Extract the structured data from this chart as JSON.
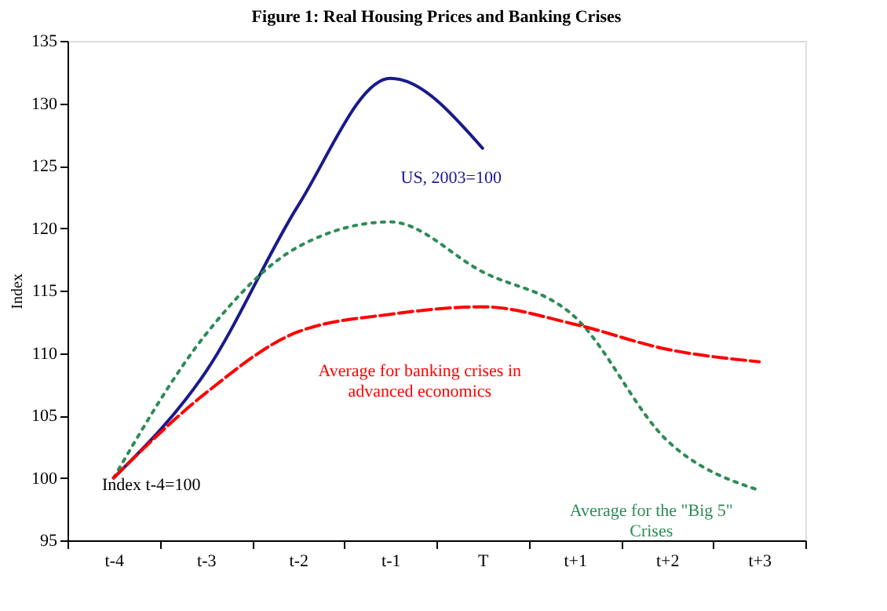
{
  "chart_data": {
    "type": "line",
    "title": "Figure 1:  Real Housing Prices and Banking Crises",
    "ylabel": "Index",
    "categories": [
      "t-4",
      "t-3",
      "t-2",
      "t-1",
      "T",
      "t+1",
      "t+2",
      "t+3"
    ],
    "series": [
      {
        "name": "US, 2003=100",
        "color": "#1a1a8c",
        "line_style": "solid",
        "values": [
          100,
          108.5,
          121.8,
          132,
          126.4,
          null,
          null,
          null
        ]
      },
      {
        "name": "Average for the \"Big 5\"\nCrises",
        "color": "#2e8b57",
        "line_style": "dotted",
        "values": [
          100,
          111.5,
          118.5,
          120.5,
          116.5,
          112.9,
          103,
          99
        ]
      },
      {
        "name": "Average for banking crises in\nadvanced economics",
        "color": "#ff0000",
        "line_style": "dashed",
        "values": [
          100,
          106.8,
          111.7,
          113.1,
          113.7,
          112.3,
          110.3,
          109.3
        ]
      }
    ],
    "annotations": [
      "Index t-4=100"
    ],
    "ylim": [
      95,
      135
    ],
    "yticks": [
      95,
      100,
      105,
      110,
      115,
      120,
      125,
      130,
      135
    ],
    "grid": false
  }
}
